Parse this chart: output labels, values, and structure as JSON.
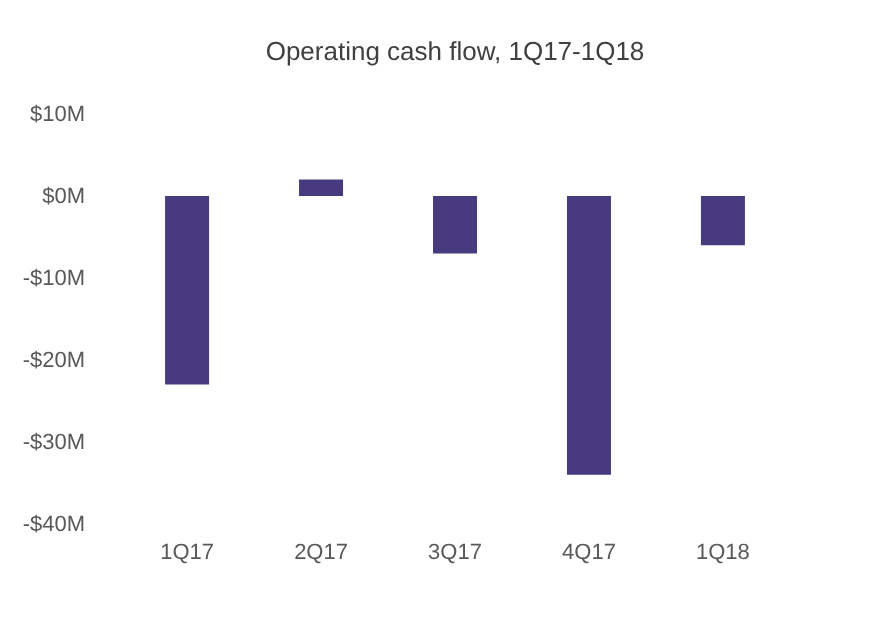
{
  "chart_data": {
    "type": "bar",
    "title": "Operating cash flow, 1Q17-1Q18",
    "categories": [
      "1Q17",
      "2Q17",
      "3Q17",
      "4Q17",
      "1Q18"
    ],
    "series": [
      {
        "color": "#483a7e",
        "values": [
          -23,
          2,
          -7,
          -34,
          -6
        ]
      }
    ],
    "ylim": [
      -40,
      10
    ],
    "yticks": [
      {
        "value": -40,
        "label": "-$40M"
      },
      {
        "value": -30,
        "label": "-$30M"
      },
      {
        "value": -20,
        "label": "-$20M"
      },
      {
        "value": -10,
        "label": "-$10M"
      },
      {
        "value": 0,
        "label": "$0M"
      },
      {
        "value": 10,
        "label": "$10M"
      }
    ],
    "grid": false
  }
}
